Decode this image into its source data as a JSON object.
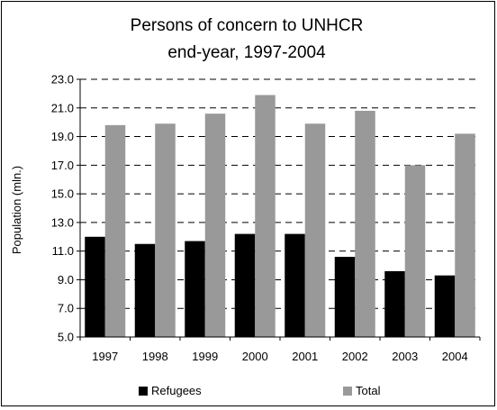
{
  "chart_data": {
    "type": "bar",
    "title_lines": [
      "Persons of concern to UNHCR",
      "end-year, 1997-2004"
    ],
    "ylabel": "Population (mln.)",
    "xlabel": "",
    "categories": [
      "1997",
      "1998",
      "1999",
      "2000",
      "2001",
      "2002",
      "2003",
      "2004"
    ],
    "series": [
      {
        "name": "Refugees",
        "color": "#000000",
        "values": [
          12.0,
          11.5,
          11.7,
          12.2,
          12.2,
          10.6,
          9.6,
          9.3
        ]
      },
      {
        "name": "Total",
        "color": "#999999",
        "values": [
          19.8,
          19.9,
          20.6,
          21.9,
          19.9,
          20.8,
          17.0,
          19.2
        ]
      }
    ],
    "ylim": [
      5.0,
      23.0
    ],
    "yticks": [
      "5.0",
      "7.0",
      "9.0",
      "11.0",
      "13.0",
      "15.0",
      "17.0",
      "19.0",
      "21.0",
      "23.0"
    ],
    "grid": "dashed horizontal",
    "legend_position": "bottom"
  }
}
